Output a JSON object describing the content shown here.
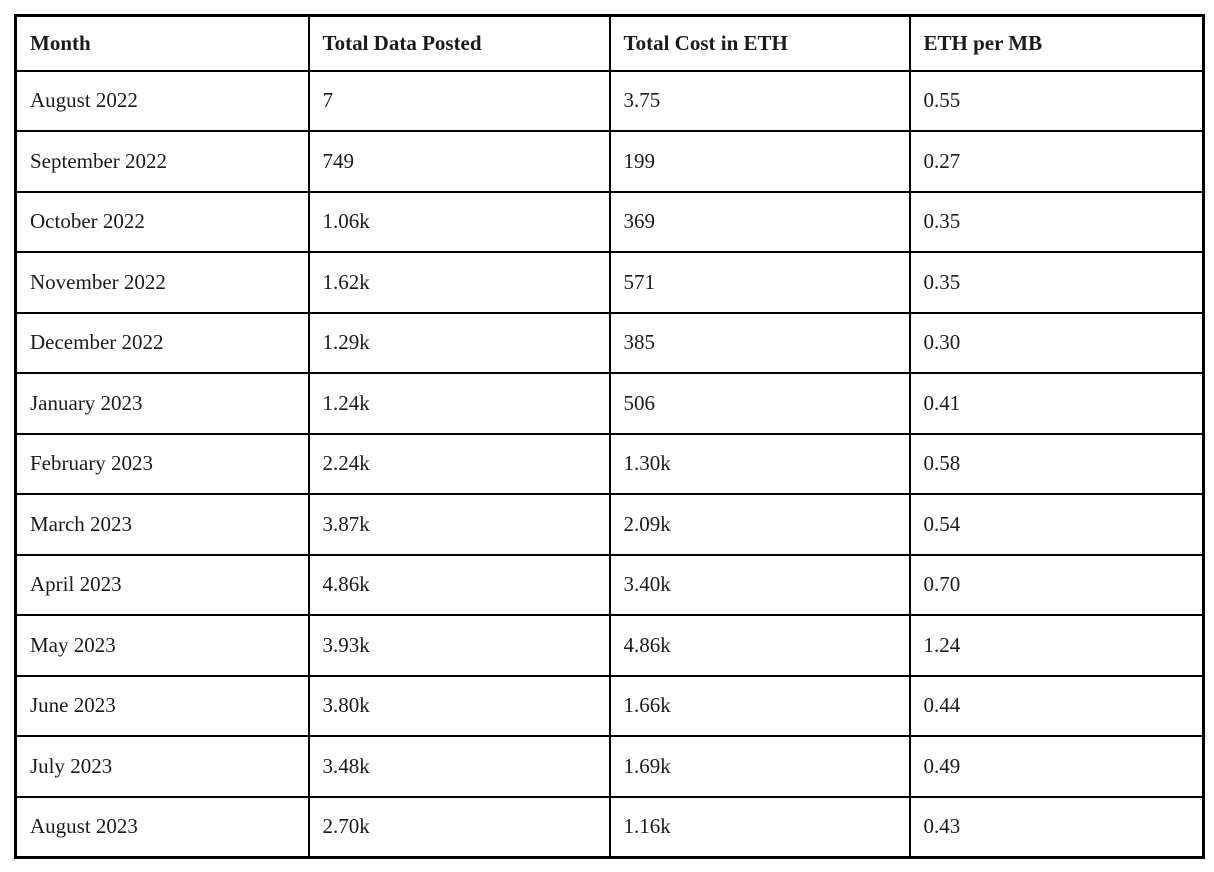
{
  "chart_data": {
    "type": "table",
    "columns": [
      "Month",
      "Total Data Posted",
      "Total Cost in ETH",
      "ETH per MB"
    ],
    "rows": [
      [
        "August 2022",
        "7",
        "3.75",
        "0.55"
      ],
      [
        "September 2022",
        "749",
        "199",
        "0.27"
      ],
      [
        "October 2022",
        "1.06k",
        "369",
        "0.35"
      ],
      [
        "November 2022",
        "1.62k",
        "571",
        "0.35"
      ],
      [
        "December 2022",
        "1.29k",
        "385",
        "0.30"
      ],
      [
        "January 2023",
        "1.24k",
        "506",
        "0.41"
      ],
      [
        "February 2023",
        "2.24k",
        "1.30k",
        "0.58"
      ],
      [
        "March 2023",
        "3.87k",
        "2.09k",
        "0.54"
      ],
      [
        "April 2023",
        "4.86k",
        "3.40k",
        "0.70"
      ],
      [
        "May 2023",
        "3.93k",
        "4.86k",
        "1.24"
      ],
      [
        "June 2023",
        "3.80k",
        "1.66k",
        "0.44"
      ],
      [
        "July 2023",
        "3.48k",
        "1.69k",
        "0.49"
      ],
      [
        "August 2023",
        "2.70k",
        "1.16k",
        "0.43"
      ]
    ]
  },
  "colors": {
    "border": "#000000",
    "text": "#1b1b1b",
    "background": "#ffffff"
  }
}
